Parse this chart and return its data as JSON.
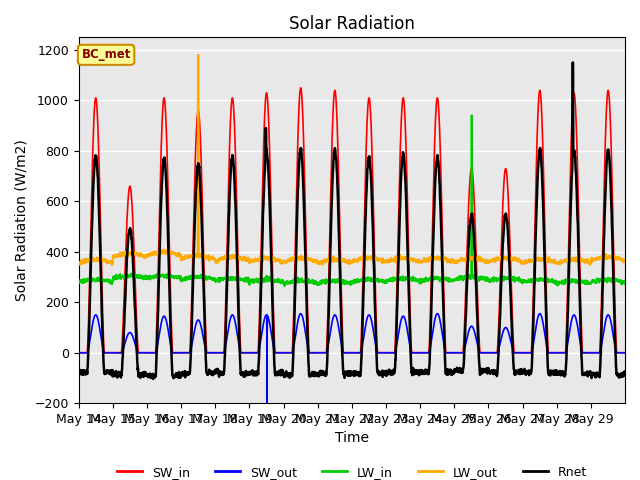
{
  "title": "Solar Radiation",
  "xlabel": "Time",
  "ylabel": "Solar Radiation (W/m2)",
  "ylim": [
    -200,
    1250
  ],
  "label_box_text": "BC_met",
  "label_box_color": "#ffff99",
  "label_box_edge": "#cc8800",
  "label_text_color": "#880000",
  "plot_bg_color": "#e8e8e8",
  "fig_bg_color": "#ffffff",
  "series_colors": {
    "SW_in": "#ff0000",
    "SW_out": "#0000ff",
    "LW_in": "#00cc00",
    "LW_out": "#ffaa00",
    "Rnet": "#000000"
  },
  "series_linewidths": {
    "SW_in": 1.2,
    "SW_out": 1.2,
    "LW_in": 1.5,
    "LW_out": 1.5,
    "Rnet": 1.8
  },
  "tick_labels": [
    "May 14",
    "May 15",
    "May 16",
    "May 17",
    "May 18",
    "May 19",
    "May 20",
    "May 21",
    "May 22",
    "May 23",
    "May 24",
    "May 25",
    "May 26",
    "May 27",
    "May 28",
    "May 29"
  ],
  "yticks": [
    -200,
    0,
    200,
    400,
    600,
    800,
    1000,
    1200
  ],
  "grid_color": "#ffffff",
  "figsize": [
    6.4,
    4.8
  ],
  "dpi": 100,
  "n_days": 16,
  "pts_per_day": 144,
  "sw_in_peaks": [
    1010,
    660,
    1010,
    960,
    1010,
    1030,
    1050,
    1040,
    1010,
    1010,
    1010,
    730,
    730,
    1040,
    1030,
    1040
  ],
  "sw_out_peaks": [
    150,
    80,
    145,
    130,
    150,
    150,
    155,
    150,
    150,
    145,
    155,
    105,
    100,
    155,
    150,
    150
  ],
  "lw_in_values": [
    280,
    295,
    295,
    290,
    285,
    280,
    275,
    275,
    280,
    285,
    285,
    290,
    285,
    280,
    275,
    280
  ],
  "lw_out_values": [
    355,
    380,
    385,
    370,
    365,
    360,
    360,
    355,
    360,
    360,
    360,
    360,
    360,
    355,
    355,
    365
  ]
}
